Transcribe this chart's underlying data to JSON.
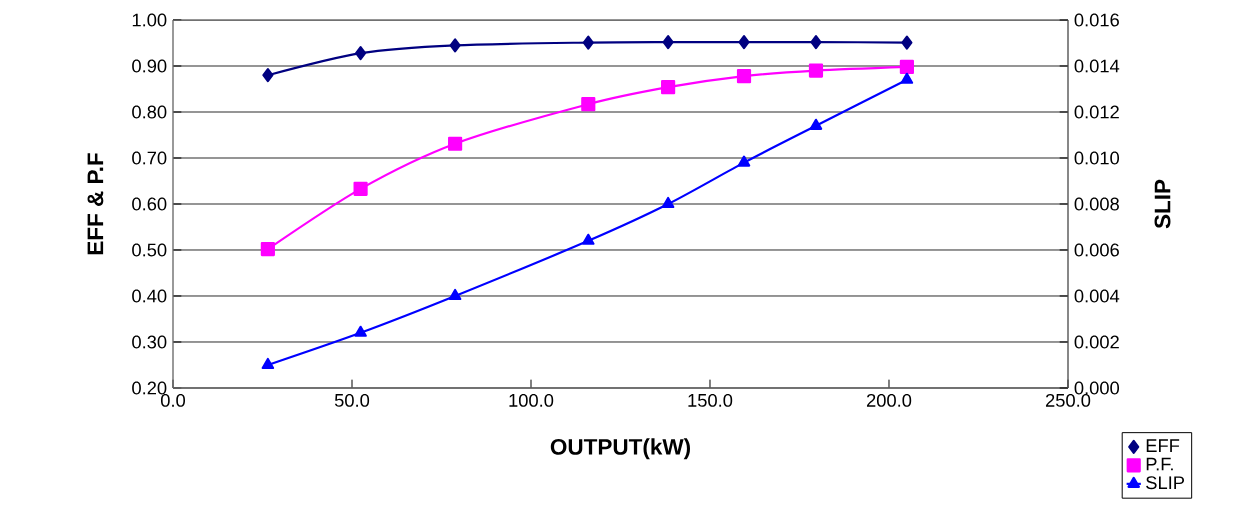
{
  "chart_data": {
    "type": "line",
    "xlabel": "OUTPUT(kW)",
    "ylabel": "EFF & P.F",
    "y2label": "SLIP",
    "grid": "y",
    "legend": "bottom right",
    "xlim": [
      0,
      250
    ],
    "xticks": [
      {
        "value": 0,
        "label": "0.0"
      },
      {
        "value": 50,
        "label": "50.0"
      },
      {
        "value": 100,
        "label": "100.0"
      },
      {
        "value": 150,
        "label": "150.0"
      },
      {
        "value": 200,
        "label": "200.0"
      },
      {
        "value": 250,
        "label": "250.0"
      }
    ],
    "ylim": [
      0.2,
      1.0
    ],
    "yticks": [
      {
        "value": 0.2,
        "label": "0.20"
      },
      {
        "value": 0.3,
        "label": "0.30"
      },
      {
        "value": 0.4,
        "label": "0.40"
      },
      {
        "value": 0.5,
        "label": "0.50"
      },
      {
        "value": 0.6,
        "label": "0.60"
      },
      {
        "value": 0.7,
        "label": "0.70"
      },
      {
        "value": 0.8,
        "label": "0.80"
      },
      {
        "value": 0.9,
        "label": "0.90"
      },
      {
        "value": 1.0,
        "label": "1.00"
      }
    ],
    "y2lim": [
      0,
      0.016
    ],
    "y2ticks": [
      {
        "value": 0,
        "label": "0.000"
      },
      {
        "value": 0.002,
        "label": "0.002"
      },
      {
        "value": 0.004,
        "label": "0.004"
      },
      {
        "value": 0.006,
        "label": "0.006"
      },
      {
        "value": 0.008,
        "label": "0.008"
      },
      {
        "value": 0.01,
        "label": "0.010"
      },
      {
        "value": 0.012,
        "label": "0.012"
      },
      {
        "value": 0.014,
        "label": "0.014"
      },
      {
        "value": 0.016,
        "label": "0.016"
      }
    ],
    "x": [
      26.5,
      52.4,
      78.8,
      116,
      138.3,
      159.5,
      179.6,
      205
    ],
    "series": [
      {
        "name": "EFF",
        "color": "#000080",
        "marker": "diamond",
        "values": [
          0.88,
          0.928,
          0.945,
          0.951,
          0.952,
          0.952,
          0.952,
          0.951
        ]
      },
      {
        "name": "P.F.",
        "color": "#ff00ff",
        "marker": "square",
        "values": [
          0.502,
          0.633,
          0.731,
          0.817,
          0.854,
          0.878,
          0.89,
          0.898
        ]
      },
      {
        "name": "SLIP",
        "color": "#0000ff",
        "marker": "triangle",
        "axis": "y2",
        "values": [
          0.001,
          0.0024,
          0.004,
          0.0064,
          0.008,
          0.0098,
          0.0114,
          0.0134
        ]
      }
    ]
  }
}
